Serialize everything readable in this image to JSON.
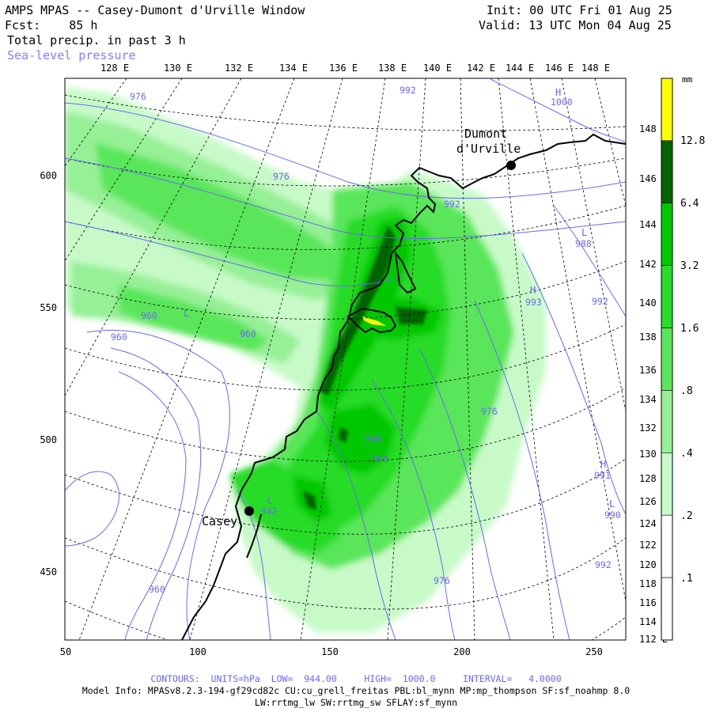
{
  "header": {
    "title": "AMPS MPAS -- Casey-Dumont d'Urville Window",
    "fcst": "Fcst:    85 h",
    "field": "Total precip. in past 3 h",
    "overlay": "Sea-level pressure",
    "init": "Init: 00 UTC Fri 01 Aug 25",
    "valid": "Valid: 13 UTC Mon 04 Aug 25"
  },
  "map": {
    "top_longitude_labels": [
      "128 E",
      "130 E",
      "132 E",
      "134 E",
      "136 E",
      "138 E",
      "140 E",
      "142 E",
      "144 E",
      "146 E",
      "148 E"
    ],
    "right_longitude_labels": [
      "148 E",
      "146 E",
      "144 E",
      "142 E",
      "140 E",
      "138 E",
      "136 E",
      "134 E",
      "132 E",
      "130 E",
      "128 E",
      "126 E",
      "124 E",
      "122 E",
      "120 E",
      "118 E",
      "116 E",
      "114 E",
      "112 E"
    ],
    "x_axis_ticks": [
      "50",
      "100",
      "150",
      "200",
      "250"
    ],
    "y_axis_ticks": [
      "600",
      "550",
      "500",
      "450"
    ],
    "stations": [
      {
        "name": "Casey"
      },
      {
        "name_line1": "Dumont",
        "name_line2": "d'Urville"
      }
    ],
    "isobar_labels": [
      "976",
      "992",
      "1000",
      "976",
      "992",
      "988",
      "993",
      "992",
      "960",
      "960",
      "960",
      "976",
      "960",
      "960",
      "991",
      "990",
      "992",
      "942",
      "976",
      "960"
    ],
    "pressure_centers": [
      "H",
      "L",
      "H",
      "L",
      "H",
      "L",
      "L"
    ]
  },
  "colorbar": {
    "unit": "mm",
    "levels": [
      "12.8",
      "6.4",
      "3.2",
      "1.6",
      ".8",
      ".4",
      ".2",
      ".1"
    ],
    "colors": [
      "#ffff00",
      "#006400",
      "#00c800",
      "#28dc28",
      "#5ae65a",
      "#96f096",
      "#c8fac8",
      "#ffffff"
    ]
  },
  "footer": {
    "contours": "CONTOURS:  UNITS=hPa  LOW=  944.00     HIGH=  1000.0     INTERVAL=   4.0000",
    "model_info": "Model Info: MPASv8.2.3-194-gf29cd82c CU:cu_grell_freitas PBL:bl_mynn MP:mp_thompson SF:sf_noahmp 8.0",
    "physics": "LW:rrtmg_lw SW:rrtmg_sw SFLAY:sf_mynn"
  }
}
